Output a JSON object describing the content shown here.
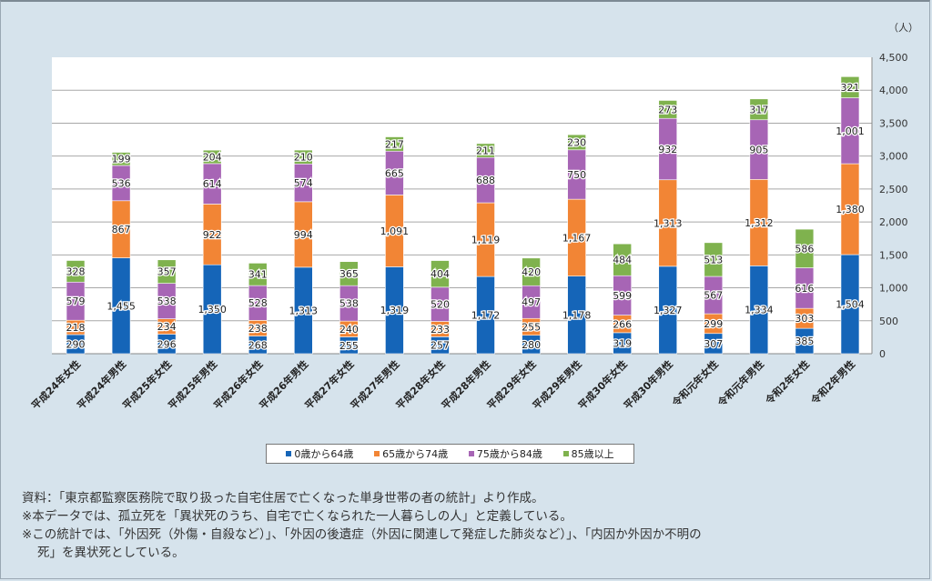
{
  "unit_label": "（人）",
  "legend": [
    {
      "label": "0歳から64歳",
      "color": "#1565b8"
    },
    {
      "label": "65歳から74歳",
      "color": "#f28535"
    },
    {
      "label": "75歳から84歳",
      "color": "#a765b5"
    },
    {
      "label": "85歳以上",
      "color": "#7fb24e"
    }
  ],
  "notes": [
    "資料：「東京都監察医務院で取り扱った自宅住居で亡くなった単身世帯の者の統計」より作成。",
    "※本データでは、孤立死を「異状死のうち、自宅で亡くなられた一人暮らしの人」と定義している。",
    "※この統計では、「外因死（外傷・自殺など）」、「外因の後遺症（外因に関連して発症した肺炎など）」、「内因か外因か不明の",
    "死」を異状死としている。"
  ],
  "chart_data": {
    "type": "bar",
    "stacked": true,
    "title": "",
    "xlabel": "",
    "ylabel": "（人）",
    "ylim": [
      0,
      4500
    ],
    "yticks": [
      0,
      500,
      1000,
      1500,
      2000,
      2500,
      3000,
      3500,
      4000,
      4500
    ],
    "ytick_labels": [
      "0",
      "500",
      "1,000",
      "1,500",
      "2,000",
      "2,500",
      "3,000",
      "3,500",
      "4,000",
      "4,500"
    ],
    "y_axis_position": "right",
    "grid": true,
    "legend_position": "bottom",
    "categories": [
      "平成24年女性",
      "平成24年男性",
      "平成25年女性",
      "平成25年男性",
      "平成26年女性",
      "平成26年男性",
      "平成27年女性",
      "平成27年男性",
      "平成28年女性",
      "平成28年男性",
      "平成29年女性",
      "平成29年男性",
      "平成30年女性",
      "平成30年男性",
      "令和元年女性",
      "令和元年男性",
      "令和2年女性",
      "令和2年男性"
    ],
    "series": [
      {
        "name": "0歳から64歳",
        "color": "#1565b8",
        "values": [
          290,
          1455,
          296,
          1350,
          268,
          1313,
          255,
          1319,
          257,
          1172,
          280,
          1178,
          319,
          1327,
          307,
          1334,
          385,
          1504
        ]
      },
      {
        "name": "65歳から74歳",
        "color": "#f28535",
        "values": [
          218,
          867,
          234,
          922,
          238,
          994,
          240,
          1091,
          233,
          1119,
          255,
          1167,
          266,
          1313,
          299,
          1312,
          303,
          1380
        ]
      },
      {
        "name": "75歳から84歳",
        "color": "#a765b5",
        "values": [
          579,
          536,
          538,
          614,
          528,
          574,
          538,
          665,
          520,
          688,
          497,
          750,
          599,
          932,
          567,
          905,
          616,
          1001
        ]
      },
      {
        "name": "85歳以上",
        "color": "#7fb24e",
        "values": [
          328,
          199,
          357,
          204,
          341,
          210,
          365,
          217,
          404,
          211,
          420,
          230,
          484,
          273,
          513,
          317,
          586,
          321
        ]
      }
    ]
  }
}
